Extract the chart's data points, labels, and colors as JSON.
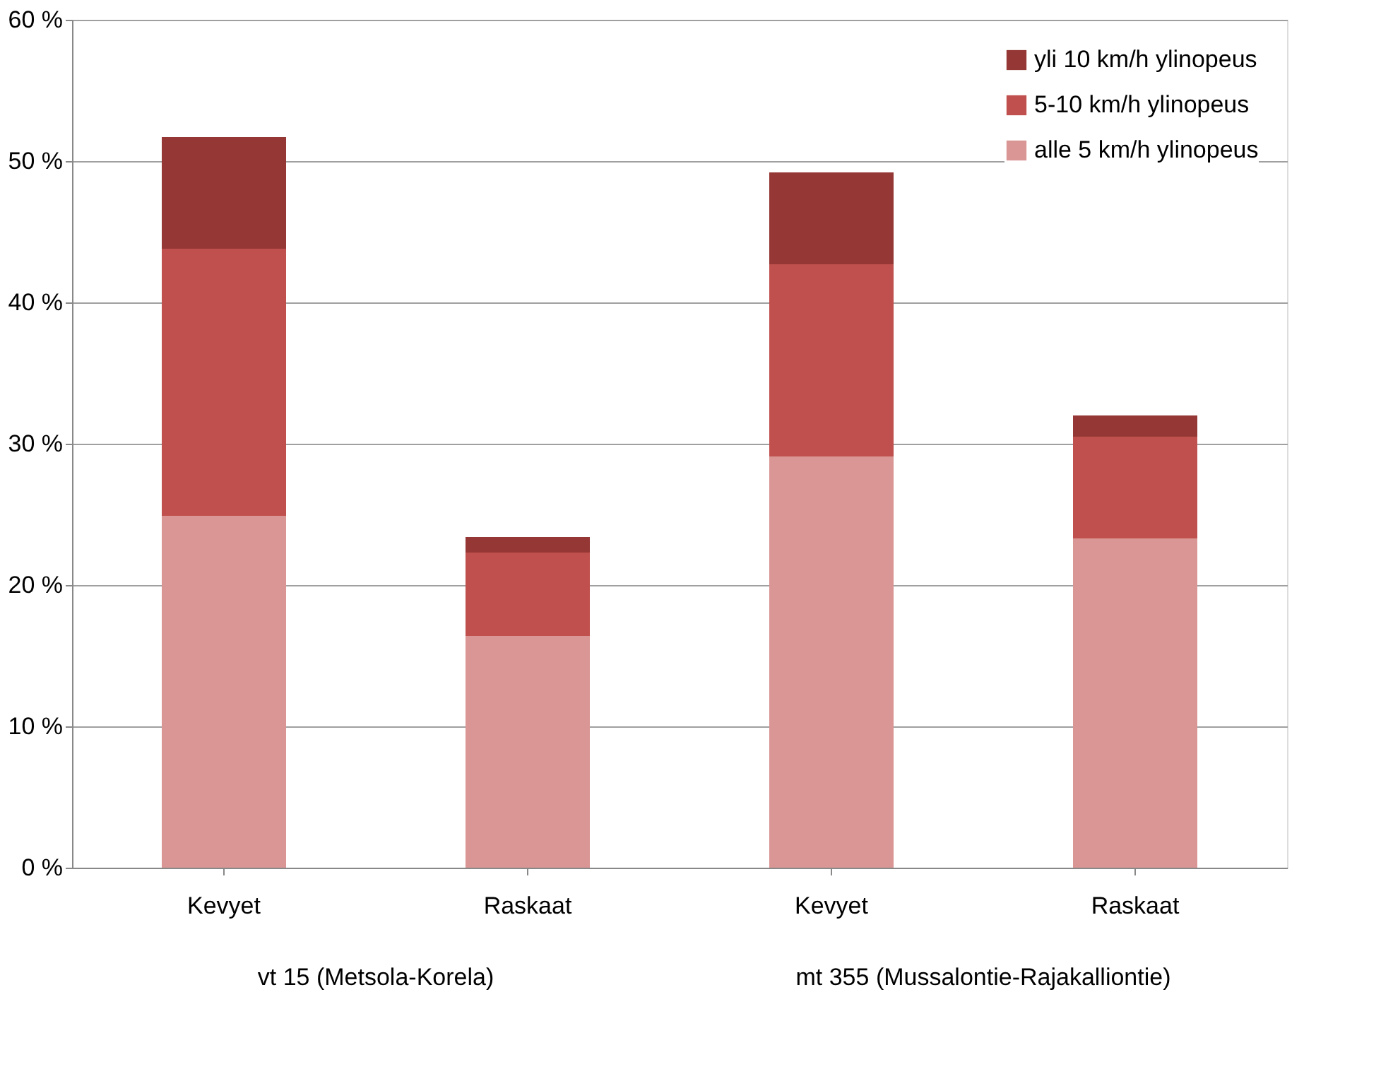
{
  "chart_data": {
    "type": "bar",
    "stacked": true,
    "categories": [
      "Kevyet",
      "Raskaat",
      "Kevyet",
      "Raskaat"
    ],
    "series": [
      {
        "name": "alle 5 km/h ylinopeus",
        "color": "#d99694",
        "values": [
          24.9,
          16.4,
          29.1,
          23.3
        ]
      },
      {
        "name": "5-10 km/h ylinopeus",
        "color": "#c0504d",
        "values": [
          18.9,
          5.9,
          13.6,
          7.2
        ]
      },
      {
        "name": "yli 10 km/h ylinopeus",
        "color": "#953735",
        "values": [
          7.9,
          1.1,
          6.5,
          1.5
        ]
      }
    ],
    "annotations": [
      "vt 15 (Metsola-Korela)",
      "mt 355 (Mussalontie-Rajakalliontie)"
    ],
    "ylim": [
      0,
      60
    ],
    "yticks": [
      {
        "value": 0,
        "label": "0 %"
      },
      {
        "value": 10,
        "label": "10 %"
      },
      {
        "value": 20,
        "label": "20 %"
      },
      {
        "value": 30,
        "label": "30 %"
      },
      {
        "value": 40,
        "label": "40 %"
      },
      {
        "value": 50,
        "label": "50 %"
      },
      {
        "value": 60,
        "label": "60 %"
      }
    ],
    "grid": "y",
    "legend": "top right"
  }
}
